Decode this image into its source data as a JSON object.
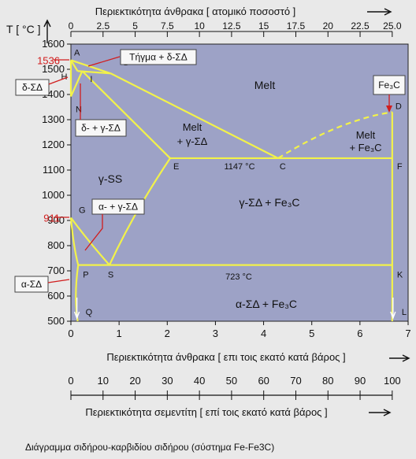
{
  "title_top": "Περιεκτικότητα άνθρακα [ ατομικό ποσοστό ]",
  "title_bottom": "Περιεκτικότητα άνθρακα [ επι τοις εκατό κατά βάρος ]",
  "title_cementite": "Περιεκτικότητα σεμεντίτη [ επί τοις εκατό κατά βάρος ]",
  "caption": "Διάγραμμα σιδήρου-καρβιδίου σιδήρου (σύστημα Fe-Fe3C)",
  "y_axis_label": "T [ °C ]",
  "colors": {
    "plot_bg": "#9da2c6",
    "line": "#f2f24a",
    "red": "#d11d1d"
  },
  "chart_data": {
    "type": "diagram",
    "x_wt": {
      "min": 0,
      "max": 7,
      "ticks": [
        "0",
        "1",
        "2",
        "3",
        "4",
        "5",
        "6",
        "7"
      ]
    },
    "x_at": {
      "ticks": [
        0,
        2.5,
        5,
        7.5,
        10,
        12.5,
        15,
        17.5,
        20,
        22.5,
        25
      ],
      "labels": [
        "0",
        "2.5",
        "5",
        "7.5",
        "10",
        "12.5",
        "15",
        "17.5",
        "20",
        "22.5",
        "25.0"
      ]
    },
    "x_cem": {
      "ticks": [
        0,
        10,
        20,
        30,
        40,
        50,
        60,
        70,
        80,
        90,
        100
      ],
      "labels": [
        "0",
        "10",
        "20",
        "30",
        "40",
        "50",
        "60",
        "70",
        "80",
        "90",
        "100"
      ]
    },
    "y": {
      "min": 500,
      "max": 1600,
      "ticks": [
        500,
        600,
        700,
        800,
        900,
        1000,
        1100,
        1200,
        1300,
        1400,
        1500,
        1600
      ],
      "labels": [
        "500",
        "600",
        "700",
        "800",
        "900",
        "1000",
        "1100",
        "1200",
        "1300",
        "1400",
        "1500",
        "1600"
      ],
      "red_labels": [
        {
          "value": 1536,
          "text": "1536"
        },
        {
          "value": 911,
          "text": "911"
        }
      ]
    },
    "points": [
      {
        "name": "A",
        "x": 0,
        "y": 1536
      },
      {
        "name": "B",
        "x": 0.5,
        "y": 1493
      },
      {
        "name": "H",
        "x": 0.09,
        "y": 1493
      },
      {
        "name": "I",
        "x": 0.17,
        "y": 1493
      },
      {
        "name": "N",
        "x": 0,
        "y": 1392
      },
      {
        "name": "E",
        "x": 2.06,
        "y": 1147
      },
      {
        "name": "C",
        "x": 4.3,
        "y": 1147
      },
      {
        "name": "F",
        "x": 6.67,
        "y": 1147
      },
      {
        "name": "D",
        "x": 6.67,
        "y": 1330
      },
      {
        "name": "G",
        "x": 0,
        "y": 911
      },
      {
        "name": "P",
        "x": 0.02,
        "y": 723
      },
      {
        "name": "S",
        "x": 0.8,
        "y": 723
      },
      {
        "name": "K",
        "x": 6.67,
        "y": 723
      },
      {
        "name": "Q",
        "x": 0.01,
        "y": 500
      },
      {
        "name": "L",
        "x": 6.67,
        "y": 500
      }
    ],
    "regions": [
      {
        "text": "Melt"
      },
      {
        "text": "Melt"
      },
      {
        "text": "+ γ-ΣΔ"
      },
      {
        "text": "Melt"
      },
      {
        "text": "+ Fe₃C"
      },
      {
        "text": "γ-SS"
      },
      {
        "text": "γ-ΣΔ + Fe₃C"
      },
      {
        "text": "α-ΣΔ + Fe₃C"
      }
    ],
    "annotations": [
      {
        "text": "Τήγμα + δ-ΣΔ"
      },
      {
        "text": "δ-ΣΔ"
      },
      {
        "text": "δ- + γ-ΣΔ"
      },
      {
        "text": "α- + γ-ΣΔ"
      },
      {
        "text": "α-ΣΔ"
      },
      {
        "text": "Fe₃C"
      },
      {
        "text": "1147 °C"
      },
      {
        "text": "723 °C"
      }
    ]
  }
}
